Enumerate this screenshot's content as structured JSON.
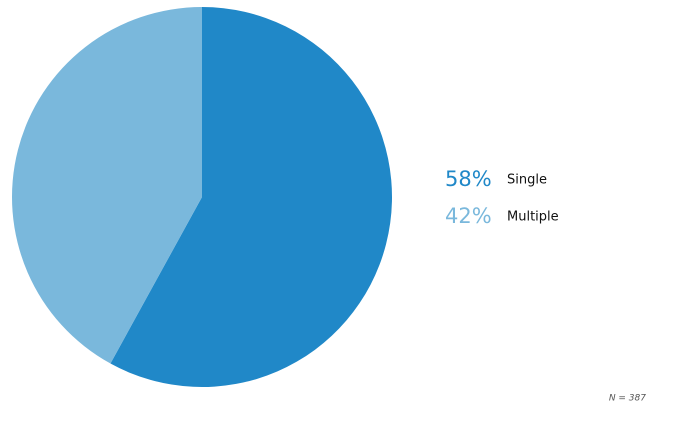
{
  "chart_data": {
    "type": "pie",
    "categories": [
      "Single",
      "Multiple"
    ],
    "values": [
      58,
      42
    ],
    "value_labels": [
      "58%",
      "42%"
    ],
    "colors": [
      "#2088c8",
      "#7ab8dc"
    ],
    "annotation": "N = 387"
  }
}
